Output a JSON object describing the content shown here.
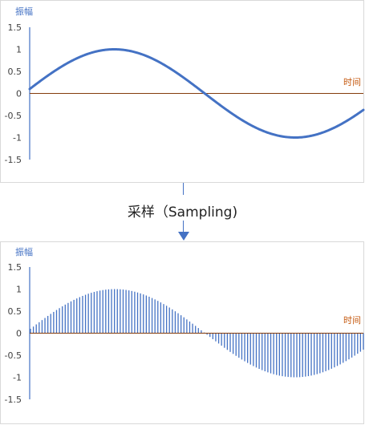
{
  "top_chart": {
    "ylabel": "振幅",
    "xlabel": "时间"
  },
  "bottom_chart": {
    "ylabel": "振幅",
    "xlabel": "时间"
  },
  "arrow_label": "采样（Sampling)",
  "colors": {
    "wave": "#4472c4",
    "axis_x": "#843c0c",
    "axis_y": "#4472c4",
    "xlabel": "#c55a11",
    "ylabel": "#4472c4"
  },
  "chart_data": [
    {
      "type": "line",
      "title": "",
      "ylabel": "振幅",
      "xlabel": "时间",
      "yticks": [
        "1.5",
        "1",
        "0.5",
        "0",
        "-0.5",
        "-1",
        "-1.5"
      ],
      "ylim": [
        -1.5,
        1.5
      ],
      "x_range": [
        0.1,
        5.9
      ],
      "series": [
        {
          "function": "sin",
          "x_start": 0.1,
          "x_end": 5.9,
          "values_sampled": [
            0.1,
            1.0,
            0.0,
            -1.0,
            0.0,
            1.0,
            -0.55
          ]
        }
      ]
    },
    {
      "type": "bar",
      "title": "",
      "ylabel": "振幅",
      "xlabel": "时间",
      "yticks": [
        "1.5",
        "1",
        "0.5",
        "0",
        "-0.5",
        "-1",
        "-1.5"
      ],
      "ylim": [
        -1.5,
        1.5
      ],
      "x_range": [
        0.1,
        5.9
      ],
      "sample_count": 116,
      "series": [
        {
          "function": "sin",
          "x_start": 0.1,
          "x_end": 5.9
        }
      ]
    }
  ]
}
